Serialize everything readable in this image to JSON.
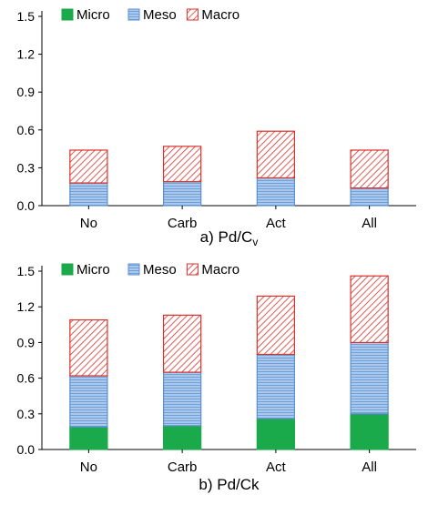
{
  "colors": {
    "micro": "#1aaa4b",
    "meso": "#9fc2e8",
    "macro": "#f4b8b8",
    "macro_hatch": "#d9322b"
  },
  "chart_data": [
    {
      "type": "bar",
      "stacked": true,
      "caption": "a) Pd/Cv",
      "caption_main": "a) Pd/C",
      "caption_sub": "v",
      "categories": [
        "No",
        "Carb",
        "Act",
        "All"
      ],
      "series": [
        {
          "name": "Micro",
          "values": [
            0.0,
            0.0,
            0.0,
            0.0
          ]
        },
        {
          "name": "Meso",
          "values": [
            0.18,
            0.19,
            0.22,
            0.14
          ]
        },
        {
          "name": "Macro",
          "values": [
            0.26,
            0.28,
            0.37,
            0.3
          ]
        }
      ],
      "ylim": [
        0,
        1.5
      ],
      "yticks": [
        "0.0",
        "0.3",
        "0.6",
        "0.9",
        "1.2",
        "1.5"
      ],
      "grid": false,
      "legend": "top-left"
    },
    {
      "type": "bar",
      "stacked": true,
      "caption": "b) Pd/Ck",
      "categories": [
        "No",
        "Carb",
        "Act",
        "All"
      ],
      "series": [
        {
          "name": "Micro",
          "values": [
            0.19,
            0.2,
            0.26,
            0.3
          ]
        },
        {
          "name": "Meso",
          "values": [
            0.43,
            0.45,
            0.54,
            0.6
          ]
        },
        {
          "name": "Macro",
          "values": [
            0.47,
            0.48,
            0.49,
            0.56
          ]
        }
      ],
      "ylim": [
        0,
        1.5
      ],
      "yticks": [
        "0.0",
        "0.3",
        "0.6",
        "0.9",
        "1.2",
        "1.5"
      ],
      "grid": false,
      "legend": "top-left"
    }
  ]
}
